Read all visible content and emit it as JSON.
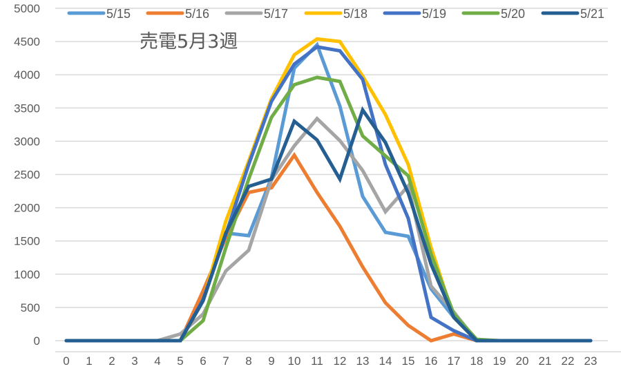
{
  "chart_data": {
    "type": "line",
    "title": "売電5月3週",
    "xlabel": "",
    "ylabel": "",
    "x": [
      0,
      1,
      2,
      3,
      4,
      5,
      6,
      7,
      8,
      9,
      10,
      11,
      12,
      13,
      14,
      15,
      16,
      17,
      18,
      19,
      20,
      21,
      22,
      23
    ],
    "x_tick_labels": [
      "0",
      "1",
      "2",
      "3",
      "4",
      "5",
      "6",
      "7",
      "8",
      "9",
      "10",
      "11",
      "12",
      "13",
      "14",
      "15",
      "16",
      "17",
      "18",
      "19",
      "20",
      "21",
      "22",
      "23"
    ],
    "y_ticks": [
      0,
      500,
      1000,
      1500,
      2000,
      2500,
      3000,
      3500,
      4000,
      4500,
      5000
    ],
    "ylim": [
      0,
      5000
    ],
    "grid": true,
    "legend_position": "top",
    "series": [
      {
        "name": "5/15",
        "color": "#5B9BD5",
        "values": [
          0,
          0,
          0,
          0,
          0,
          0,
          700,
          1620,
          1580,
          2450,
          4100,
          4450,
          3530,
          2170,
          1630,
          1570,
          780,
          350,
          0,
          0,
          0,
          0,
          0,
          0
        ]
      },
      {
        "name": "5/16",
        "color": "#ED7D31",
        "values": [
          0,
          0,
          0,
          0,
          0,
          0,
          750,
          1550,
          2230,
          2300,
          2790,
          2230,
          1720,
          1110,
          570,
          230,
          0,
          100,
          0,
          0,
          0,
          0,
          0,
          0
        ]
      },
      {
        "name": "5/17",
        "color": "#A5A5A5",
        "values": [
          0,
          0,
          0,
          0,
          0,
          100,
          400,
          1050,
          1360,
          2420,
          2930,
          3340,
          3010,
          2560,
          1940,
          2330,
          820,
          430,
          0,
          0,
          0,
          0,
          0,
          0
        ]
      },
      {
        "name": "5/18",
        "color": "#FFC000",
        "values": [
          0,
          0,
          0,
          0,
          0,
          0,
          600,
          1800,
          2700,
          3640,
          4300,
          4540,
          4500,
          3980,
          3400,
          2650,
          1400,
          350,
          0,
          0,
          0,
          0,
          0,
          0
        ]
      },
      {
        "name": "5/19",
        "color": "#4472C4",
        "values": [
          0,
          0,
          0,
          0,
          0,
          0,
          620,
          1600,
          2650,
          3600,
          4160,
          4420,
          4360,
          3930,
          2650,
          1840,
          350,
          150,
          0,
          0,
          0,
          0,
          0,
          0
        ]
      },
      {
        "name": "5/20",
        "color": "#70AD47",
        "values": [
          0,
          0,
          0,
          0,
          0,
          0,
          300,
          1400,
          2430,
          3360,
          3850,
          3960,
          3900,
          3080,
          2780,
          2480,
          1300,
          400,
          20,
          0,
          0,
          0,
          0,
          0
        ]
      },
      {
        "name": "5/21",
        "color": "#255E91",
        "values": [
          0,
          0,
          0,
          0,
          0,
          0,
          600,
          1620,
          2320,
          2430,
          3300,
          3020,
          2430,
          3470,
          2980,
          2220,
          1150,
          350,
          0,
          0,
          0,
          0,
          0,
          0
        ]
      }
    ]
  },
  "colors": {
    "grid": "#D9D9D9",
    "axis_text": "#595959"
  }
}
